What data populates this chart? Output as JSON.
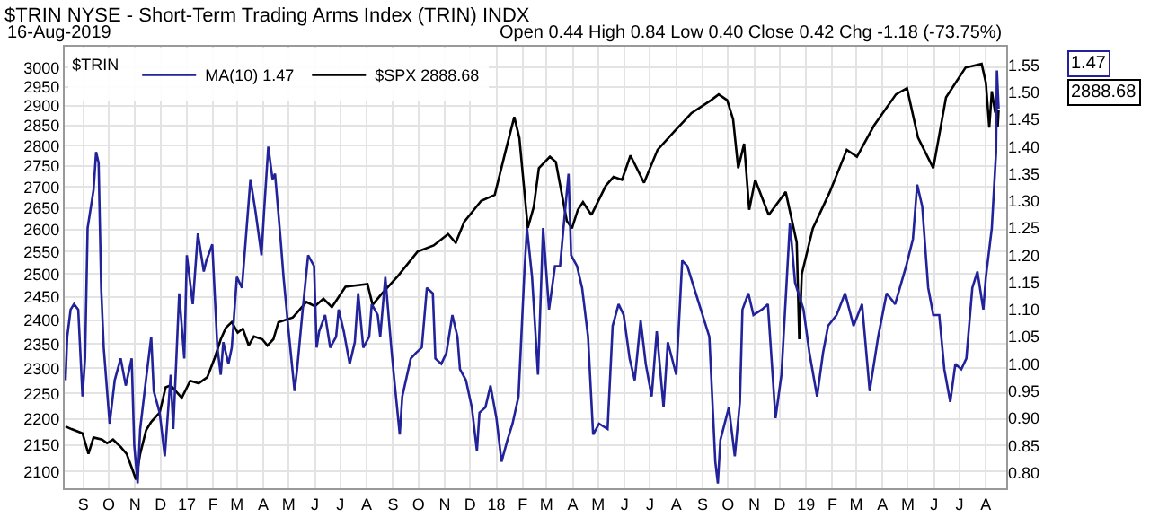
{
  "chart_data": {
    "type": "line",
    "title": "$TRIN NYSE - Short-Term Trading Arms Index (TRIN) INDX",
    "subtitle": "16-Aug-2019",
    "legend_title": "$TRIN",
    "legend": "top left",
    "grid": true,
    "log": true,
    "marker": "none",
    "line_style": "solid",
    "annotations": [
      "Open 0.44 High 0.84 Low 0.40 Close 0.42 Chg -1.18 (-73.75%)",
      "1.47",
      "2888.68"
    ],
    "xlim": [
      "2016-08-10",
      "2019-08-25"
    ],
    "xticks": [
      {
        "value": "2016-09-01",
        "label": "S"
      },
      {
        "value": "2016-10-01",
        "label": "O"
      },
      {
        "value": "2016-11-01",
        "label": "N"
      },
      {
        "value": "2016-12-01",
        "label": "D"
      },
      {
        "value": "2017-01-01",
        "label": "17"
      },
      {
        "value": "2017-02-01",
        "label": "F"
      },
      {
        "value": "2017-03-01",
        "label": "M"
      },
      {
        "value": "2017-04-01",
        "label": "A"
      },
      {
        "value": "2017-05-01",
        "label": "M"
      },
      {
        "value": "2017-06-01",
        "label": "J"
      },
      {
        "value": "2017-07-01",
        "label": "J"
      },
      {
        "value": "2017-08-01",
        "label": "A"
      },
      {
        "value": "2017-09-01",
        "label": "S"
      },
      {
        "value": "2017-10-01",
        "label": "O"
      },
      {
        "value": "2017-11-01",
        "label": "N"
      },
      {
        "value": "2017-12-01",
        "label": "D"
      },
      {
        "value": "2018-01-01",
        "label": "18"
      },
      {
        "value": "2018-02-01",
        "label": "F"
      },
      {
        "value": "2018-03-01",
        "label": "M"
      },
      {
        "value": "2018-04-01",
        "label": "A"
      },
      {
        "value": "2018-05-01",
        "label": "M"
      },
      {
        "value": "2018-06-01",
        "label": "J"
      },
      {
        "value": "2018-07-01",
        "label": "J"
      },
      {
        "value": "2018-08-01",
        "label": "A"
      },
      {
        "value": "2018-09-01",
        "label": "S"
      },
      {
        "value": "2018-10-01",
        "label": "O"
      },
      {
        "value": "2018-11-01",
        "label": "N"
      },
      {
        "value": "2018-12-01",
        "label": "D"
      },
      {
        "value": "2019-01-01",
        "label": "19"
      },
      {
        "value": "2019-02-01",
        "label": "F"
      },
      {
        "value": "2019-03-01",
        "label": "M"
      },
      {
        "value": "2019-04-01",
        "label": "A"
      },
      {
        "value": "2019-05-01",
        "label": "M"
      },
      {
        "value": "2019-06-01",
        "label": "J"
      },
      {
        "value": "2019-07-01",
        "label": "J"
      },
      {
        "value": "2019-08-01",
        "label": "A"
      }
    ],
    "ylim": [
      2069,
      3056
    ],
    "yticks": [
      2100,
      2150,
      2200,
      2250,
      2300,
      2350,
      2400,
      2450,
      2500,
      2550,
      2600,
      2650,
      2700,
      2750,
      2800,
      2850,
      2900,
      2950,
      3000
    ],
    "y2lim": [
      0.771,
      1.584
    ],
    "y2ticks": [
      {
        "value": 0.8,
        "label": "0.80"
      },
      0.85,
      {
        "value": 0.9,
        "label": "0.90"
      },
      0.95,
      {
        "value": 1.0,
        "label": "1.00"
      },
      1.05,
      {
        "value": 1.1,
        "label": "1.10"
      },
      1.15,
      {
        "value": 1.2,
        "label": "1.20"
      },
      1.25,
      {
        "value": 1.3,
        "label": "1.30"
      },
      1.35,
      {
        "value": 1.4,
        "label": "1.40"
      },
      1.45,
      {
        "value": 1.5,
        "label": "1.50"
      },
      1.55
    ],
    "series": [
      {
        "name": "MA(10) 1.47",
        "color": "#22229a",
        "axis": "y2",
        "x": [
          "2016-08-11",
          "2016-08-13",
          "2016-08-17",
          "2016-08-21",
          "2016-08-26",
          "2016-08-31",
          "2016-09-03",
          "2016-09-06",
          "2016-09-13",
          "2016-09-16",
          "2016-09-19",
          "2016-09-22",
          "2016-09-25",
          "2016-09-28",
          "2016-10-02",
          "2016-10-08",
          "2016-10-15",
          "2016-10-21",
          "2016-10-28",
          "2016-10-31",
          "2016-11-04",
          "2016-11-07",
          "2016-11-13",
          "2016-11-20",
          "2016-11-23",
          "2016-11-30",
          "2016-12-06",
          "2016-12-13",
          "2016-12-16",
          "2016-12-23",
          "2016-12-29",
          "2017-01-01",
          "2017-01-08",
          "2017-01-14",
          "2017-01-21",
          "2017-01-24",
          "2017-01-31",
          "2017-02-06",
          "2017-02-10",
          "2017-02-13",
          "2017-02-19",
          "2017-02-23",
          "2017-03-01",
          "2017-03-07",
          "2017-03-17",
          "2017-03-23",
          "2017-03-30",
          "2017-04-02",
          "2017-04-07",
          "2017-04-12",
          "2017-04-15",
          "2017-04-22",
          "2017-04-25",
          "2017-05-01",
          "2017-05-08",
          "2017-05-11",
          "2017-05-17",
          "2017-05-24",
          "2017-05-31",
          "2017-06-03",
          "2017-06-06",
          "2017-06-13",
          "2017-06-19",
          "2017-06-26",
          "2017-06-29",
          "2017-07-05",
          "2017-07-12",
          "2017-07-18",
          "2017-07-22",
          "2017-07-28",
          "2017-08-04",
          "2017-08-07",
          "2017-08-14",
          "2017-08-17",
          "2017-08-23",
          "2017-08-30",
          "2017-09-02",
          "2017-09-09",
          "2017-09-12",
          "2017-09-22",
          "2017-09-28",
          "2017-10-05",
          "2017-10-11",
          "2017-10-18",
          "2017-10-21",
          "2017-10-28",
          "2017-11-03",
          "2017-11-10",
          "2017-11-16",
          "2017-11-19",
          "2017-11-26",
          "2017-12-03",
          "2017-12-09",
          "2017-12-12",
          "2017-12-19",
          "2017-12-25",
          "2018-01-01",
          "2018-01-07",
          "2018-01-14",
          "2018-01-20",
          "2018-01-27",
          "2018-02-03",
          "2018-02-06",
          "2018-02-12",
          "2018-02-19",
          "2018-02-25",
          "2018-03-04",
          "2018-03-11",
          "2018-03-17",
          "2018-03-21",
          "2018-03-27",
          "2018-03-30",
          "2018-04-06",
          "2018-04-12",
          "2018-04-19",
          "2018-04-25",
          "2018-05-02",
          "2018-05-12",
          "2018-05-18",
          "2018-05-25",
          "2018-05-31",
          "2018-06-07",
          "2018-06-13",
          "2018-06-20",
          "2018-06-26",
          "2018-07-03",
          "2018-07-09",
          "2018-07-17",
          "2018-07-22",
          "2018-08-01",
          "2018-08-08",
          "2018-08-14",
          "2018-08-24",
          "2018-08-30",
          "2018-09-09",
          "2018-09-16",
          "2018-09-19",
          "2018-09-22",
          "2018-10-02",
          "2018-10-09",
          "2018-10-15",
          "2018-10-18",
          "2018-10-25",
          "2018-10-31",
          "2018-11-10",
          "2018-11-17",
          "2018-11-23",
          "2018-11-26",
          "2018-12-03",
          "2018-12-13",
          "2018-12-19",
          "2018-12-29",
          "2019-01-05",
          "2019-01-14",
          "2019-01-21",
          "2019-01-27",
          "2019-02-06",
          "2019-02-16",
          "2019-02-26",
          "2019-03-08",
          "2019-03-17",
          "2019-03-27",
          "2019-04-06",
          "2019-04-16",
          "2019-04-29",
          "2019-05-07",
          "2019-05-12",
          "2019-05-18",
          "2019-05-25",
          "2019-05-31",
          "2019-06-07",
          "2019-06-13",
          "2019-06-20",
          "2019-06-26",
          "2019-07-03",
          "2019-07-09",
          "2019-07-16",
          "2019-07-22",
          "2019-07-29",
          "2019-08-01",
          "2019-08-08",
          "2019-08-13",
          "2019-08-14",
          "2019-08-16"
        ],
        "values": [
          0.97,
          1.05,
          1.1,
          1.11,
          1.1,
          0.94,
          1.01,
          1.25,
          1.32,
          1.39,
          1.37,
          1.14,
          1.03,
          0.97,
          0.89,
          0.97,
          1.01,
          0.96,
          1.01,
          0.85,
          0.78,
          0.88,
          0.96,
          1.05,
          0.95,
          0.91,
          0.83,
          0.98,
          0.88,
          1.13,
          1.01,
          1.2,
          1.11,
          1.24,
          1.17,
          1.19,
          1.22,
          1.03,
          0.98,
          1.04,
          1.0,
          1.03,
          1.16,
          1.14,
          1.34,
          1.28,
          1.2,
          1.28,
          1.4,
          1.34,
          1.35,
          1.22,
          1.16,
          1.06,
          0.95,
          0.99,
          1.09,
          1.2,
          1.18,
          1.03,
          1.06,
          1.09,
          1.03,
          1.05,
          1.1,
          1.06,
          1.0,
          1.04,
          1.13,
          1.03,
          1.05,
          1.11,
          1.09,
          1.05,
          1.16,
          1.03,
          0.98,
          0.87,
          0.94,
          1.01,
          1.02,
          1.03,
          1.14,
          1.13,
          1.01,
          1.0,
          1.02,
          1.09,
          1.05,
          0.99,
          0.97,
          0.92,
          0.84,
          0.91,
          0.92,
          0.96,
          0.9,
          0.82,
          0.86,
          0.89,
          0.94,
          1.17,
          1.25,
          1.16,
          0.98,
          1.25,
          1.1,
          1.18,
          1.18,
          1.25,
          1.35,
          1.2,
          1.18,
          1.14,
          1.05,
          0.87,
          0.89,
          0.88,
          1.07,
          1.11,
          1.09,
          1.01,
          0.97,
          1.08,
          1.0,
          0.94,
          1.06,
          0.92,
          1.04,
          0.98,
          1.19,
          1.18,
          1.13,
          1.1,
          1.05,
          0.82,
          0.78,
          0.86,
          0.92,
          0.83,
          0.93,
          1.1,
          1.13,
          1.09,
          1.1,
          1.11,
          0.97,
          0.9,
          0.98,
          1.26,
          1.15,
          1.1,
          1.02,
          0.94,
          1.02,
          1.07,
          1.09,
          1.13,
          1.07,
          1.11,
          0.95,
          1.05,
          1.13,
          1.11,
          1.18,
          1.23,
          1.33,
          1.29,
          1.14,
          1.09,
          1.09,
          0.99,
          0.93,
          1.0,
          0.99,
          1.01,
          1.14,
          1.17,
          1.1,
          1.16,
          1.25,
          1.39,
          1.54,
          1.47
        ]
      },
      {
        "name": "$SPX 2888.68",
        "color": "#000000",
        "axis": "y",
        "x": [
          "2016-08-11",
          "2016-08-18",
          "2016-08-31",
          "2016-09-07",
          "2016-09-13",
          "2016-09-23",
          "2016-09-29",
          "2016-10-06",
          "2016-10-15",
          "2016-10-22",
          "2016-10-29",
          "2016-11-02",
          "2016-11-07",
          "2016-11-14",
          "2016-11-20",
          "2016-11-30",
          "2016-12-07",
          "2016-12-13",
          "2016-12-26",
          "2017-01-05",
          "2017-01-15",
          "2017-01-25",
          "2017-02-03",
          "2017-02-10",
          "2017-02-16",
          "2017-02-23",
          "2017-03-02",
          "2017-03-08",
          "2017-03-15",
          "2017-03-21",
          "2017-03-31",
          "2017-04-06",
          "2017-04-13",
          "2017-04-19",
          "2017-05-06",
          "2017-05-22",
          "2017-06-01",
          "2017-06-11",
          "2017-06-21",
          "2017-07-07",
          "2017-08-02",
          "2017-08-08",
          "2017-08-18",
          "2017-09-07",
          "2017-09-30",
          "2017-10-19",
          "2017-11-05",
          "2017-11-14",
          "2017-11-24",
          "2017-12-14",
          "2017-12-30",
          "2018-01-12",
          "2018-01-22",
          "2018-01-28",
          "2018-02-07",
          "2018-02-14",
          "2018-02-20",
          "2018-03-05",
          "2018-03-12",
          "2018-03-25",
          "2018-03-31",
          "2018-04-07",
          "2018-04-13",
          "2018-04-23",
          "2018-05-10",
          "2018-05-19",
          "2018-05-29",
          "2018-06-08",
          "2018-06-24",
          "2018-07-10",
          "2018-07-30",
          "2018-08-19",
          "2018-09-11",
          "2018-09-20",
          "2018-09-30",
          "2018-10-07",
          "2018-10-13",
          "2018-10-20",
          "2018-10-26",
          "2018-11-02",
          "2018-11-18",
          "2018-12-08",
          "2018-12-21",
          "2018-12-24",
          "2018-12-27",
          "2019-01-09",
          "2019-01-29",
          "2019-02-18",
          "2019-03-02",
          "2019-03-22",
          "2019-04-17",
          "2019-04-30",
          "2019-05-13",
          "2019-05-31",
          "2019-06-15",
          "2019-07-08",
          "2019-07-27",
          "2019-08-01",
          "2019-08-05",
          "2019-08-08",
          "2019-08-12",
          "2019-08-13",
          "2019-08-14",
          "2019-08-15",
          "2019-08-16"
        ],
        "values": [
          2185,
          2180,
          2172,
          2133,
          2164,
          2160,
          2153,
          2160,
          2146,
          2133,
          2103,
          2085,
          2133,
          2178,
          2194,
          2212,
          2262,
          2266,
          2241,
          2275,
          2270,
          2282,
          2322,
          2360,
          2384,
          2396,
          2374,
          2382,
          2347,
          2366,
          2360,
          2347,
          2360,
          2396,
          2406,
          2439,
          2430,
          2446,
          2428,
          2472,
          2478,
          2433,
          2455,
          2496,
          2550,
          2564,
          2590,
          2570,
          2618,
          2667,
          2681,
          2789,
          2872,
          2820,
          2604,
          2653,
          2745,
          2773,
          2760,
          2620,
          2603,
          2646,
          2664,
          2634,
          2703,
          2724,
          2717,
          2776,
          2710,
          2790,
          2836,
          2882,
          2915,
          2930,
          2915,
          2866,
          2745,
          2805,
          2646,
          2717,
          2634,
          2688,
          2571,
          2360,
          2500,
          2603,
          2688,
          2790,
          2773,
          2850,
          2930,
          2946,
          2820,
          2745,
          2922,
          3000,
          3010,
          2960,
          2845,
          2938,
          2883,
          2926,
          2848,
          2850,
          2888.68
        ]
      }
    ]
  }
}
